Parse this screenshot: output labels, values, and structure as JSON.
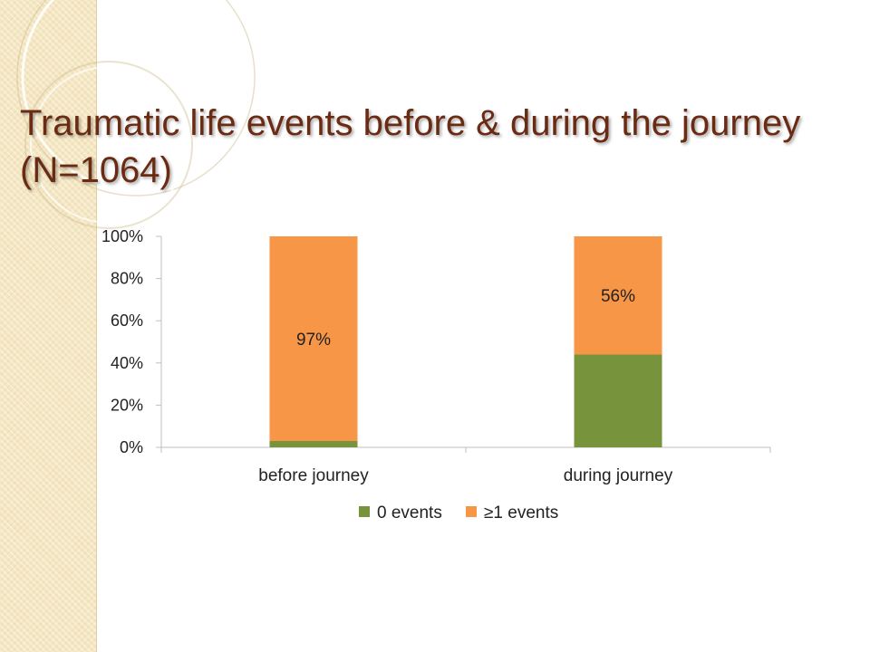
{
  "slide": {
    "title": "Traumatic life events before & during the journey (N=1064)",
    "title_color": "#6b2a12",
    "sidebar_color": "#f4e6c0"
  },
  "chart_data": {
    "type": "bar",
    "stacked": true,
    "categories": [
      "before journey",
      "during journey"
    ],
    "series": [
      {
        "name": "0 events",
        "color": "#77933c",
        "values": [
          3,
          44
        ]
      },
      {
        "name": "≥1 events",
        "color": "#f79646",
        "values": [
          97,
          56
        ]
      }
    ],
    "data_labels": [
      {
        "category": "before journey",
        "series": "≥1 events",
        "text": "97%"
      },
      {
        "category": "during journey",
        "series": "≥1 events",
        "text": "56%"
      }
    ],
    "ylim": [
      0,
      100
    ],
    "yticks": [
      "0%",
      "20%",
      "40%",
      "60%",
      "80%",
      "100%"
    ],
    "grid": false,
    "legend_position": "bottom"
  }
}
